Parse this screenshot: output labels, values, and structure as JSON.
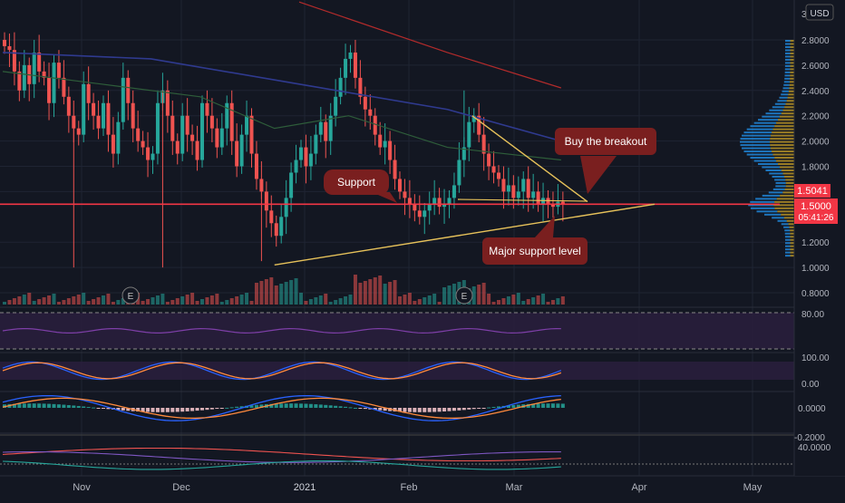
{
  "currency_label": "USD",
  "price_axis": {
    "ticks": [
      "2.8000",
      "2.6000",
      "2.4000",
      "2.2000",
      "2.0000",
      "1.8000",
      "1.6000",
      "1.2000",
      "1.0000",
      "0.8000"
    ],
    "top_partial": "3."
  },
  "last_price_label": "1.5041",
  "current_price_label": "1.5000",
  "countdown_label": "05:41:26",
  "time_axis": [
    "Nov",
    "Dec",
    "2021",
    "Feb",
    "Mar",
    "Apr",
    "May"
  ],
  "annotations": {
    "buy": "Buy the breakout",
    "support": "Support",
    "major": "Major support level"
  },
  "earnings_marker": "E",
  "indicator_labels": {
    "rsi": [
      "80.00"
    ],
    "stoch": [
      "100.00",
      "0.00"
    ],
    "macd": [
      "0.0000",
      "-0.2000"
    ],
    "osc": [
      "40.0000"
    ]
  },
  "colors": {
    "bg": "#131722",
    "up": "#26a69a",
    "down": "#ef5350",
    "ma_blue": "#2f3a8f",
    "ma_green": "#2e5d3a",
    "ma_red": "#b22b2b",
    "support": "#f23645",
    "trendline": "#e6c15a",
    "callout": "#7a1f1f"
  },
  "chart_data": {
    "type": "candlestick",
    "symbol_currency": "USD",
    "y_ticks": [
      0.8,
      1.0,
      1.2,
      1.6,
      1.8,
      2.0,
      2.2,
      2.4,
      2.6,
      2.8
    ],
    "ylim": [
      0.7,
      3.0
    ],
    "x_labels": [
      "Nov",
      "Dec",
      "2021",
      "Feb",
      "Mar",
      "Apr",
      "May"
    ],
    "last_price": 1.5041,
    "current_price": 1.5,
    "support_level": 1.5,
    "closes": [
      2.75,
      2.72,
      2.55,
      2.4,
      2.6,
      2.45,
      2.7,
      2.55,
      2.5,
      2.3,
      2.62,
      2.5,
      2.35,
      2.2,
      2.1,
      2.05,
      2.45,
      2.3,
      2.2,
      2.1,
      2.3,
      2.05,
      1.9,
      2.15,
      2.5,
      2.3,
      2.1,
      2.0,
      1.95,
      1.85,
      1.9,
      2.3,
      2.4,
      2.2,
      2.0,
      1.9,
      2.2,
      2.05,
      2.0,
      1.85,
      2.3,
      2.2,
      2.1,
      1.95,
      2.1,
      2.3,
      2.0,
      1.8,
      2.05,
      2.2,
      1.9,
      1.7,
      1.6,
      1.45,
      1.35,
      1.25,
      1.4,
      1.55,
      1.75,
      1.85,
      1.95,
      1.8,
      1.9,
      2.05,
      2.15,
      2.0,
      2.2,
      2.35,
      2.5,
      2.65,
      2.7,
      2.5,
      2.35,
      2.25,
      2.2,
      2.05,
      1.95,
      2.0,
      1.85,
      1.7,
      1.6,
      1.55,
      1.5,
      1.45,
      1.4,
      1.45,
      1.5,
      1.55,
      1.48,
      1.5,
      1.55,
      1.65,
      1.85,
      1.95,
      2.15,
      2.2,
      2.05,
      1.9,
      1.8,
      1.75,
      1.7,
      1.6,
      1.65,
      1.55,
      1.6,
      1.7,
      1.55,
      1.6,
      1.5,
      1.55,
      1.5,
      1.48,
      1.52,
      1.5
    ],
    "ma_blue_points": [
      [
        0,
        2.7
      ],
      [
        30,
        2.65
      ],
      [
        60,
        2.45
      ],
      [
        90,
        2.25
      ],
      [
        113,
        2.0
      ]
    ],
    "ma_red_points": [
      [
        60,
        3.1
      ],
      [
        90,
        2.7
      ],
      [
        113,
        2.42
      ]
    ],
    "trendline_upper": [
      [
        95,
        2.2
      ],
      [
        121,
        1.52
      ]
    ],
    "trendline_lower": [
      [
        55,
        1.02
      ],
      [
        135,
        1.5
      ]
    ],
    "volume_profile_peak": 2.0
  }
}
